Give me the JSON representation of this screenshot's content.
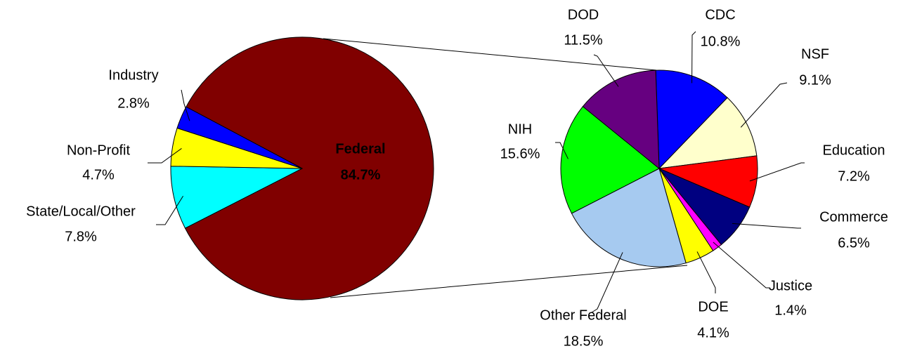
{
  "chart_data": [
    {
      "type": "pie",
      "categories": [
        "Federal",
        "State/Local/Other",
        "Non-Profit",
        "Industry"
      ],
      "values": [
        84.7,
        7.8,
        4.7,
        2.8
      ],
      "value_labels": [
        "84.7%",
        "7.8%",
        "4.7%",
        "2.8%"
      ],
      "colors": [
        "#800000",
        "#00ffff",
        "#ffff00",
        "#0000ff"
      ]
    },
    {
      "type": "pie",
      "categories": [
        "CDC",
        "NSF",
        "Education",
        "Commerce",
        "Justice",
        "DOE",
        "Other Federal",
        "NIH",
        "DOD"
      ],
      "values": [
        10.8,
        9.1,
        7.2,
        6.5,
        1.4,
        4.1,
        18.5,
        15.6,
        11.5
      ],
      "value_labels": [
        "10.8%",
        "9.1%",
        "7.2%",
        "6.5%",
        "1.4%",
        "4.1%",
        "18.5%",
        "15.6%",
        "11.5%"
      ],
      "colors": [
        "#0000ff",
        "#ffffcc",
        "#ff0000",
        "#000080",
        "#ff00ff",
        "#ffff00",
        "#a6caf0",
        "#00ff00",
        "#660080"
      ]
    }
  ]
}
